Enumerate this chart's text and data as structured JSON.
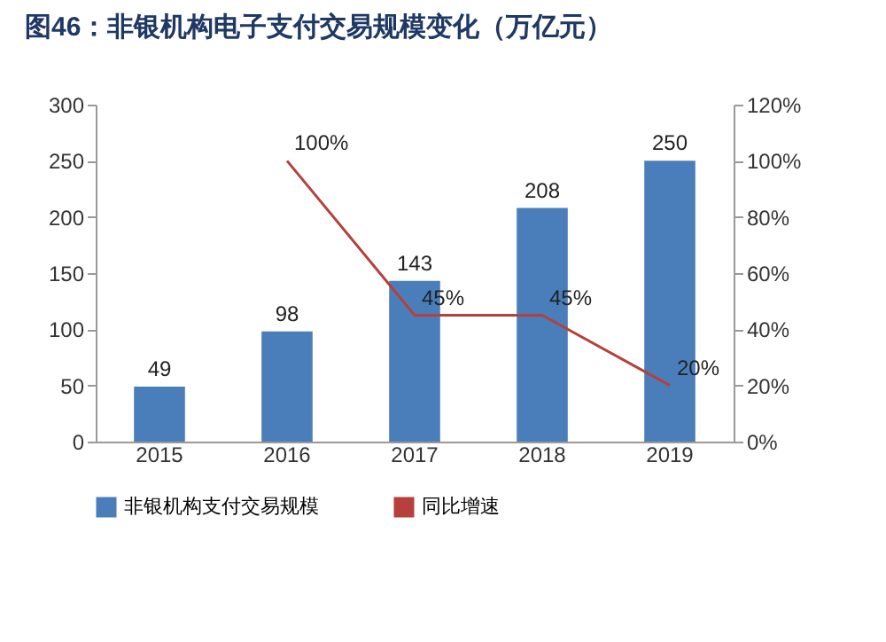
{
  "chart_data": {
    "type": "bar",
    "title": "图46：非银机构电子支付交易规模变化（万亿元）",
    "categories": [
      "2015",
      "2016",
      "2017",
      "2018",
      "2019"
    ],
    "series": [
      {
        "name": "非银机构支付交易规模",
        "color": "#4a7ebb",
        "values": [
          49,
          98,
          143,
          208,
          250
        ],
        "value_labels": [
          "49",
          "98",
          "143",
          "208",
          "250"
        ]
      },
      {
        "name": "同比增速",
        "type": "line",
        "axis": "y2",
        "color": "#b5403c",
        "values": [
          null,
          100,
          45,
          45,
          20
        ],
        "value_labels": [
          null,
          "100%",
          "45%",
          "45%",
          "20%"
        ]
      }
    ],
    "ylim": [
      0,
      300
    ],
    "yticks": [
      0,
      50,
      100,
      150,
      200,
      250,
      300
    ],
    "y2lim": [
      0,
      120
    ],
    "y2ticks": [
      {
        "value": 0,
        "label": "0%"
      },
      {
        "value": 20,
        "label": "20%"
      },
      {
        "value": 40,
        "label": "40%"
      },
      {
        "value": 60,
        "label": "60%"
      },
      {
        "value": 80,
        "label": "80%"
      },
      {
        "value": 100,
        "label": "100%"
      },
      {
        "value": 120,
        "label": "120%"
      }
    ],
    "legend": "bottom"
  }
}
